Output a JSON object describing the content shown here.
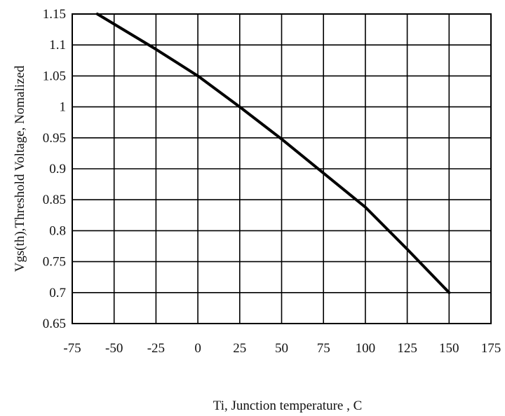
{
  "chart_data": {
    "type": "line",
    "title": "",
    "xlabel": "Ti, Junction temperature , C",
    "ylabel": "Vgs(th),Threshold Voltage, Nomalized",
    "xlim": [
      -75,
      175
    ],
    "ylim": [
      0.65,
      1.15
    ],
    "grid": true,
    "x_ticks": [
      "-75",
      "-50",
      "-25",
      "0",
      "25",
      "50",
      "75",
      "100",
      "125",
      "150",
      "175"
    ],
    "y_ticks": [
      "0.65",
      "0.7",
      "0.75",
      "0.8",
      "0.85",
      "0.9",
      "0.95",
      "1",
      "1.05",
      "1.1",
      "1.15"
    ],
    "series": [
      {
        "x": [
          -60,
          -25,
          0,
          25,
          50,
          75,
          100,
          125,
          150
        ],
        "y": [
          1.15,
          1.093,
          1.05,
          1.0,
          0.948,
          0.893,
          0.838,
          0.77,
          0.7
        ],
        "color": "#000000"
      }
    ]
  }
}
